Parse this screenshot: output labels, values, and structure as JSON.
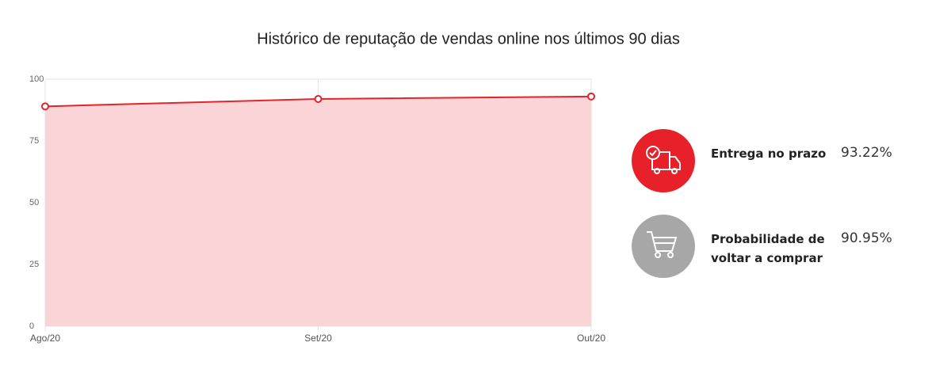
{
  "chart_data": {
    "type": "area",
    "title": "Histórico de reputação de vendas online nos últimos 90 dias",
    "categories": [
      "Ago/20",
      "Set/20",
      "Out/20"
    ],
    "values": [
      89,
      92,
      93
    ],
    "color": "#e0262c",
    "fill": "#fad4d6",
    "ylim": [
      0,
      100
    ],
    "yticks": [
      0,
      25,
      50,
      75,
      100
    ],
    "grid": true
  },
  "stats": [
    {
      "label": "Entrega no prazo",
      "value": "93.22%"
    },
    {
      "label": "Probabilidade de voltar a comprar",
      "value": "90.95%"
    }
  ]
}
